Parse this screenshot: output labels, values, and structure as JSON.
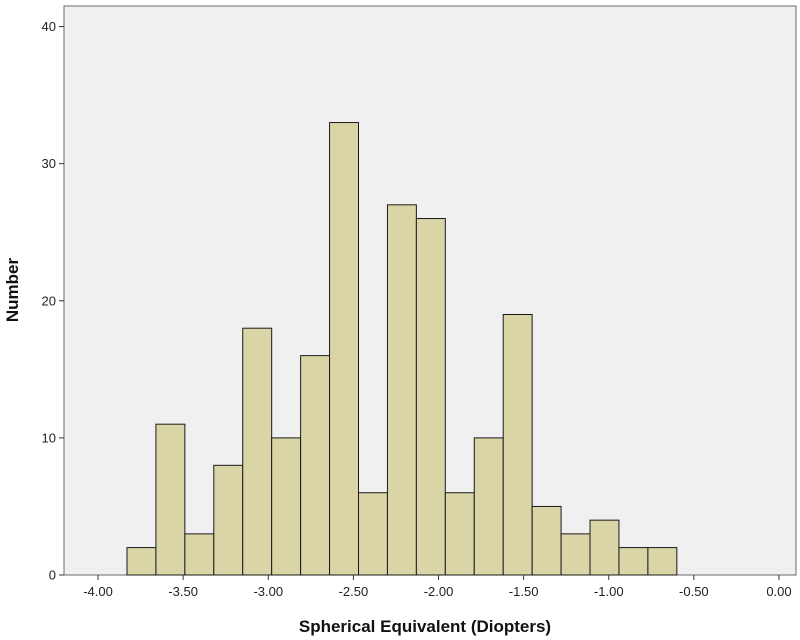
{
  "chart_data": {
    "type": "bar",
    "title": "",
    "xlabel": "Spherical Equivalent (Diopters)",
    "ylabel": "Number",
    "bin_width": 0.17,
    "bins": [
      {
        "start": -3.83,
        "count": 2
      },
      {
        "start": -3.66,
        "count": 11
      },
      {
        "start": -3.49,
        "count": 3
      },
      {
        "start": -3.32,
        "count": 8
      },
      {
        "start": -3.15,
        "count": 18
      },
      {
        "start": -2.98,
        "count": 10
      },
      {
        "start": -2.81,
        "count": 16
      },
      {
        "start": -2.64,
        "count": 33
      },
      {
        "start": -2.47,
        "count": 6
      },
      {
        "start": -2.3,
        "count": 27
      },
      {
        "start": -2.13,
        "count": 26
      },
      {
        "start": -1.96,
        "count": 6
      },
      {
        "start": -1.79,
        "count": 10
      },
      {
        "start": -1.62,
        "count": 19
      },
      {
        "start": -1.45,
        "count": 5
      },
      {
        "start": -1.28,
        "count": 3
      },
      {
        "start": -1.11,
        "count": 4
      },
      {
        "start": -0.94,
        "count": 2
      },
      {
        "start": -0.77,
        "count": 2
      }
    ],
    "xlim": [
      -4.2,
      0.1
    ],
    "ylim": [
      0,
      41.5
    ],
    "x_ticks": [
      "-4.00",
      "-3.50",
      "-3.00",
      "-2.50",
      "-2.00",
      "-1.50",
      "-1.00",
      "-0.50",
      "0.00"
    ],
    "x_tick_values": [
      -4.0,
      -3.5,
      -3.0,
      -2.5,
      -2.0,
      -1.5,
      -1.0,
      -0.5,
      0.0
    ],
    "y_ticks": [
      "0",
      "10",
      "20",
      "30",
      "40"
    ],
    "y_tick_values": [
      0,
      10,
      20,
      30,
      40
    ],
    "grid": false,
    "colors": {
      "bar_fill": "#d9d5a7",
      "bar_stroke": "#1a1a1a",
      "plot_background": "#f0f0f0",
      "frame": "#6a6a6a"
    }
  }
}
